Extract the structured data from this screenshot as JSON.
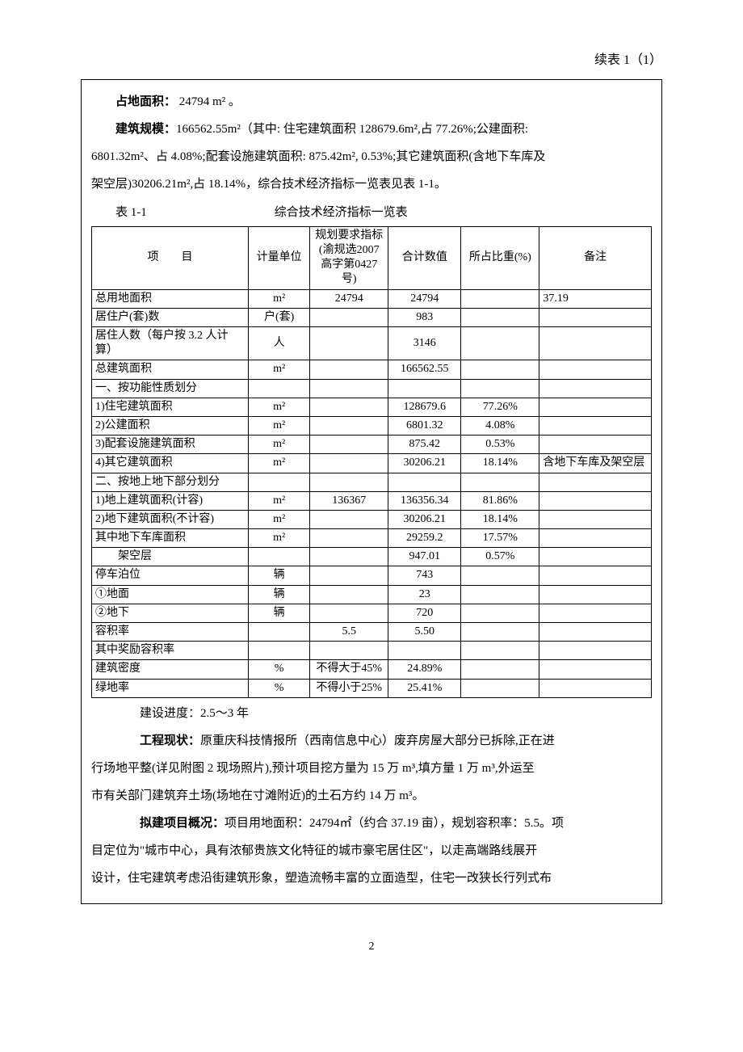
{
  "header": {
    "continuation": "续表 1（1）"
  },
  "intro": {
    "area_label": "占地面积：",
    "area_value": " 24794 m² 。",
    "scale_label": "建筑规模：",
    "scale_line1": "166562.55m²（其中: 住宅建筑面积 128679.6m²,占 77.26%;公建面积:",
    "scale_line2": "6801.32m²、占 4.08%;配套设施建筑面积: 875.42m², 0.53%;其它建筑面积(含地下车库及",
    "scale_line3": "架空层)30206.21m²,占 18.14%，综合技术经济指标一览表见表 1-1。"
  },
  "table": {
    "caption_left": "表 1-1",
    "caption_center": "综合技术经济指标一览表",
    "columns": {
      "c1": "项　　目",
      "c2": "计量单位",
      "c3": "规划要求指标(渝规选2007 高字第0427 号)",
      "c4": "合计数值",
      "c5": "所占比重(%)",
      "c6": "备注"
    },
    "col_widths": [
      "28%",
      "11%",
      "14%",
      "13%",
      "14%",
      "20%"
    ],
    "rows": [
      {
        "c1": "总用地面积",
        "c2": "m²",
        "c3": "24794",
        "c4": "24794",
        "c5": "",
        "c6": "37.19"
      },
      {
        "c1": "居住户(套)数",
        "c2": "户(套)",
        "c3": "",
        "c4": "983",
        "c5": "",
        "c6": ""
      },
      {
        "c1": "居住人数（每户按 3.2 人计算）",
        "c2": "人",
        "c3": "",
        "c4": "3146",
        "c5": "",
        "c6": ""
      },
      {
        "c1": "总建筑面积",
        "c2": "m²",
        "c3": "",
        "c4": "166562.55",
        "c5": "",
        "c6": ""
      },
      {
        "c1": "一、按功能性质划分",
        "c2": "",
        "c3": "",
        "c4": "",
        "c5": "",
        "c6": ""
      },
      {
        "c1": "1)住宅建筑面积",
        "c2": "m²",
        "c3": "",
        "c4": "128679.6",
        "c5": "77.26%",
        "c6": ""
      },
      {
        "c1": "2)公建面积",
        "c2": "m²",
        "c3": "",
        "c4": "6801.32",
        "c5": "4.08%",
        "c6": ""
      },
      {
        "c1": "3)配套设施建筑面积",
        "c2": "m²",
        "c3": "",
        "c4": "875.42",
        "c5": "0.53%",
        "c6": ""
      },
      {
        "c1": "4)其它建筑面积",
        "c2": "m²",
        "c3": "",
        "c4": "30206.21",
        "c5": "18.14%",
        "c6": "含地下车库及架空层"
      },
      {
        "c1": "二、按地上地下部分划分",
        "c2": "",
        "c3": "",
        "c4": "",
        "c5": "",
        "c6": ""
      },
      {
        "c1": "1)地上建筑面积(计容)",
        "c2": "m²",
        "c3": "136367",
        "c4": "136356.34",
        "c5": "81.86%",
        "c6": ""
      },
      {
        "c1": "2)地下建筑面积(不计容)",
        "c2": "m²",
        "c3": "",
        "c4": "30206.21",
        "c5": "18.14%",
        "c6": ""
      },
      {
        "c1": "其中地下车库面积",
        "c2": "m²",
        "c3": "",
        "c4": "29259.2",
        "c5": "17.57%",
        "c6": ""
      },
      {
        "c1": "　　架空层",
        "c2": "",
        "c3": "",
        "c4": "947.01",
        "c5": "0.57%",
        "c6": ""
      },
      {
        "c1": "停车泊位",
        "c2": "辆",
        "c3": "",
        "c4": "743",
        "c5": "",
        "c6": ""
      },
      {
        "c1": "①地面",
        "c2": "辆",
        "c3": "",
        "c4": "23",
        "c5": "",
        "c6": ""
      },
      {
        "c1": "②地下",
        "c2": "辆",
        "c3": "",
        "c4": "720",
        "c5": "",
        "c6": ""
      },
      {
        "c1": "容积率",
        "c2": "",
        "c3": "5.5",
        "c4": "5.50",
        "c5": "",
        "c6": ""
      },
      {
        "c1": "其中奖励容积率",
        "c2": "",
        "c3": "",
        "c4": "",
        "c5": "",
        "c6": ""
      },
      {
        "c1": "建筑密度",
        "c2": "%",
        "c3": "不得大于45%",
        "c4": "24.89%",
        "c5": "",
        "c6": ""
      },
      {
        "c1": "绿地率",
        "c2": "%",
        "c3": "不得小于25%",
        "c4": "25.41%",
        "c5": "",
        "c6": ""
      }
    ]
  },
  "after": {
    "progress": "建设进度：2.5～3 年",
    "status_label": "工程现状：",
    "status_text1": "原重庆科技情报所（西南信息中心）废弃房屋大部分已拆除,正在进",
    "status_text2": "行场地平整(详见附图 2 现场照片),预计项目挖方量为 15 万 m³,填方量 1 万 m³,外运至",
    "status_text3": "市有关部门建筑弃土场(场地在寸滩附近)的土石方约 14 万 m³。",
    "plan_label": "拟建项目概况：",
    "plan_text1": "项目用地面积：24794㎡（约合 37.19 亩），规划容积率：5.5。项",
    "plan_text2": "目定位为\"城市中心，具有浓郁贵族文化特征的城市豪宅居住区\"，以走高端路线展开",
    "plan_text3": "设计，住宅建筑考虑沿街建筑形象，塑造流畅丰富的立面造型，住宅一改狭长行列式布"
  },
  "footer": {
    "page": "2"
  }
}
